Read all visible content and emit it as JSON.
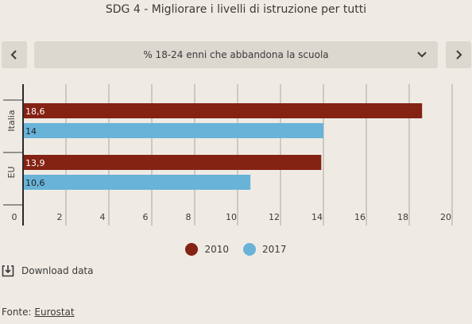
{
  "title": "SDG 4 - Migliorare i livelli di istruzione per tutti",
  "selector": {
    "selected": "% 18-24 enni che abbandona la scuola"
  },
  "icons": {
    "prev": "chevron-left-icon",
    "next": "chevron-right-icon",
    "dropdown": "chevron-down-icon",
    "download": "download-icon"
  },
  "colors": {
    "series_2010": "#842214",
    "series_2017": "#69b3d8"
  },
  "chart_data": {
    "type": "bar",
    "orientation": "horizontal",
    "categories": [
      "Italia",
      "EU"
    ],
    "series": [
      {
        "name": "2010",
        "values": [
          18.6,
          13.9
        ],
        "labels": [
          "18,6",
          "13,9"
        ]
      },
      {
        "name": "2017",
        "values": [
          14,
          10.6
        ],
        "labels": [
          "14",
          "10,6"
        ]
      }
    ],
    "xlim": [
      0,
      20
    ],
    "xticks": [
      0,
      2,
      4,
      6,
      8,
      10,
      12,
      14,
      16,
      18,
      20
    ],
    "grid": true,
    "legend": "bottom-center"
  },
  "download": {
    "label": "Download data"
  },
  "source": {
    "prefix": "Fonte: ",
    "link": "Eurostat"
  }
}
